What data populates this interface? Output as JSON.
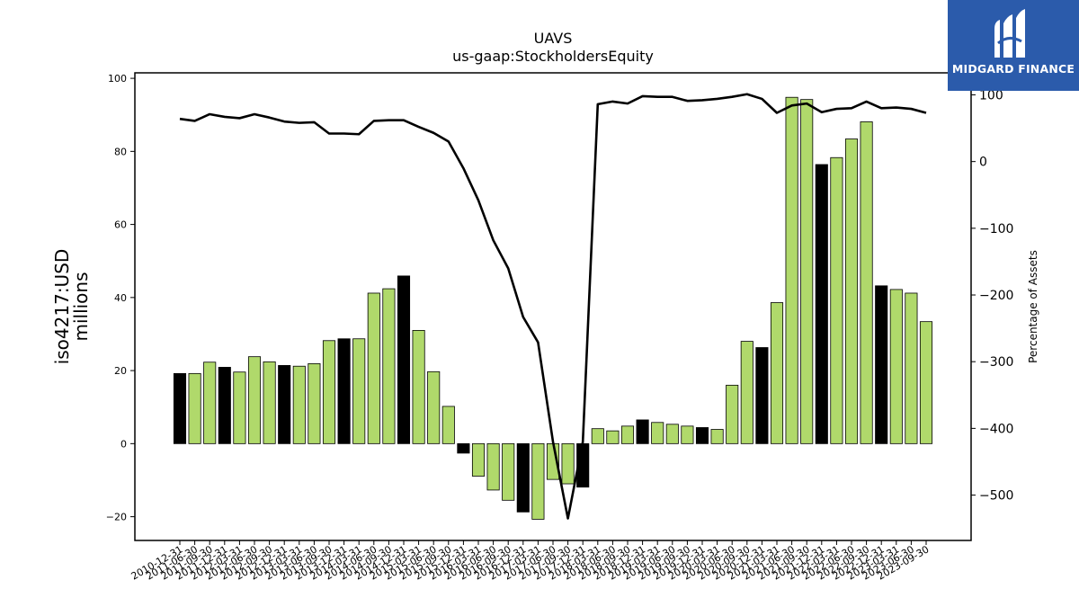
{
  "chart_data": {
    "type": "bar",
    "title": "UAVS",
    "subtitle": "us-gaap:StockholdersEquity",
    "ylabel": "iso4217:USD\nmillions",
    "y2label": "Percentage of Assets",
    "ylim": [
      -26.5,
      101.5
    ],
    "y2lim": [
      -568,
      133
    ],
    "yticks": [
      -20,
      0,
      20,
      40,
      60,
      80,
      100
    ],
    "y2ticks": [
      -500,
      -400,
      -300,
      -200,
      -100,
      0,
      100
    ],
    "grid": false,
    "colors": {
      "annual": "#000000",
      "quarterly": "#b0d96b",
      "line": "#000000",
      "edge": "#000000"
    },
    "categories": [
      "2010-12-31",
      "2011-06-30",
      "2011-09-30",
      "2011-12-31",
      "2012-03-31",
      "2012-06-30",
      "2012-09-30",
      "2012-12-31",
      "2013-03-31",
      "2013-06-30",
      "2013-09-30",
      "2013-12-31",
      "2014-03-31",
      "2014-06-30",
      "2014-09-30",
      "2014-12-31",
      "2015-03-31",
      "2015-06-30",
      "2015-09-30",
      "2015-12-31",
      "2016-03-31",
      "2016-06-30",
      "2016-09-30",
      "2016-12-31",
      "2017-03-31",
      "2017-06-30",
      "2017-09-30",
      "2017-12-31",
      "2018-03-31",
      "2018-06-30",
      "2018-09-30",
      "2018-12-31",
      "2019-03-31",
      "2019-06-30",
      "2019-09-30",
      "2019-12-31",
      "2020-03-31",
      "2020-06-30",
      "2020-09-30",
      "2020-12-31",
      "2021-03-31",
      "2021-06-30",
      "2021-09-30",
      "2021-12-31",
      "2022-03-31",
      "2022-06-30",
      "2022-09-30",
      "2022-12-31",
      "2023-03-31",
      "2023-06-30",
      "2023-09-30"
    ],
    "series": [
      {
        "kind": "bar",
        "values": [
          19.2,
          19.2,
          22.3,
          20.9,
          19.6,
          23.8,
          22.4,
          21.4,
          21.2,
          21.9,
          28.2,
          28.7,
          28.7,
          41.2,
          42.4,
          45.9,
          31.0,
          19.7,
          10.2,
          -2.6,
          -8.9,
          -12.7,
          -15.5,
          -18.7,
          -20.7,
          -9.8,
          -11.0,
          -11.9,
          4.1,
          3.5,
          4.8,
          6.5,
          5.8,
          5.3,
          4.8,
          4.4,
          3.9,
          16.0,
          28.0,
          26.3,
          38.6,
          94.8,
          94.2,
          76.4,
          78.3,
          83.4,
          88.1,
          43.2,
          42.2,
          41.2,
          33.4
        ],
        "types": [
          "A",
          "Q",
          "Q",
          "A",
          "Q",
          "Q",
          "Q",
          "A",
          "Q",
          "Q",
          "Q",
          "A",
          "Q",
          "Q",
          "Q",
          "A",
          "Q",
          "Q",
          "Q",
          "A",
          "Q",
          "Q",
          "Q",
          "A",
          "Q",
          "Q",
          "Q",
          "A",
          "Q",
          "Q",
          "Q",
          "A",
          "Q",
          "Q",
          "Q",
          "A",
          "Q",
          "Q",
          "Q",
          "A",
          "Q",
          "Q",
          "Q",
          "A",
          "Q",
          "Q",
          "Q",
          "A",
          "Q",
          "Q",
          "Q"
        ]
      },
      {
        "kind": "line",
        "axis": "right",
        "values": [
          64,
          61,
          71,
          67,
          65,
          71,
          66,
          60,
          58,
          59,
          42,
          42,
          41,
          61,
          62,
          62,
          52,
          43,
          30,
          -10,
          -58,
          -118,
          -160,
          -233,
          -271,
          -420,
          -535,
          -420,
          86,
          90,
          87,
          98,
          97,
          97,
          91,
          92,
          94,
          97,
          101,
          94,
          73,
          84,
          87,
          74,
          79,
          80,
          90,
          80,
          81,
          79,
          73
        ]
      }
    ]
  },
  "logo": {
    "text": "MIDGARD FINANCE"
  }
}
